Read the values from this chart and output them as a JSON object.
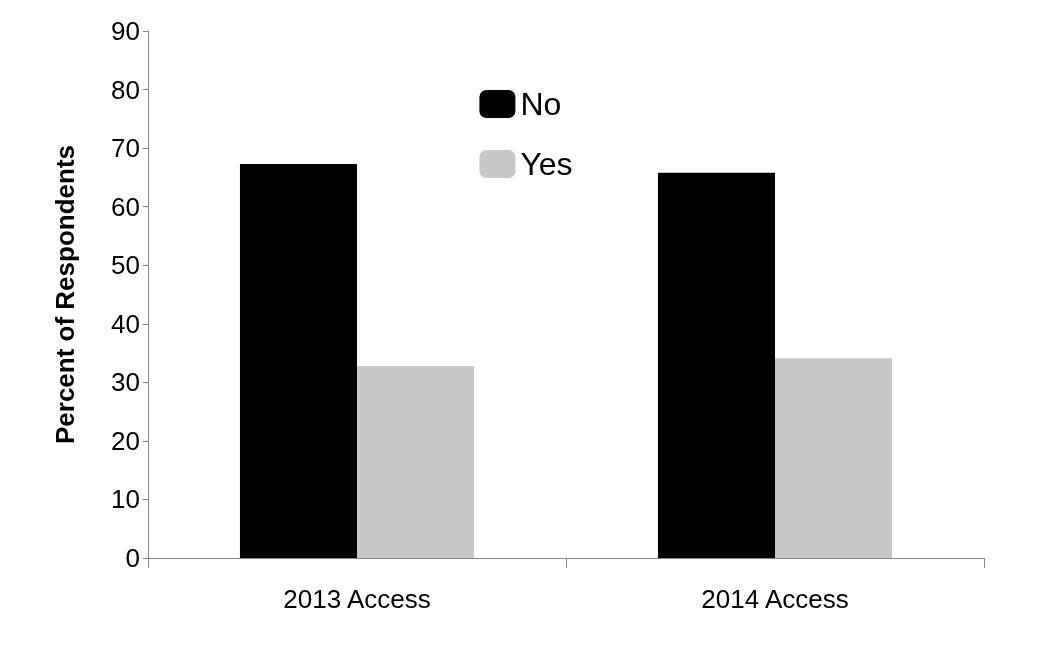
{
  "chart_data": {
    "type": "bar",
    "ylabel": "Percent of Respondents",
    "categories": [
      "2013 Access",
      "2014 Access"
    ],
    "series": [
      {
        "name": "No",
        "color": "#000000",
        "values": [
          67.3,
          65.8
        ]
      },
      {
        "name": "Yes",
        "color": "#c8c8c8",
        "values": [
          32.8,
          34.1
        ]
      }
    ],
    "ylim": [
      0,
      90
    ],
    "yticks": [
      0,
      10,
      20,
      30,
      40,
      50,
      60,
      70,
      80,
      90
    ],
    "grid": false,
    "legend": "top"
  }
}
